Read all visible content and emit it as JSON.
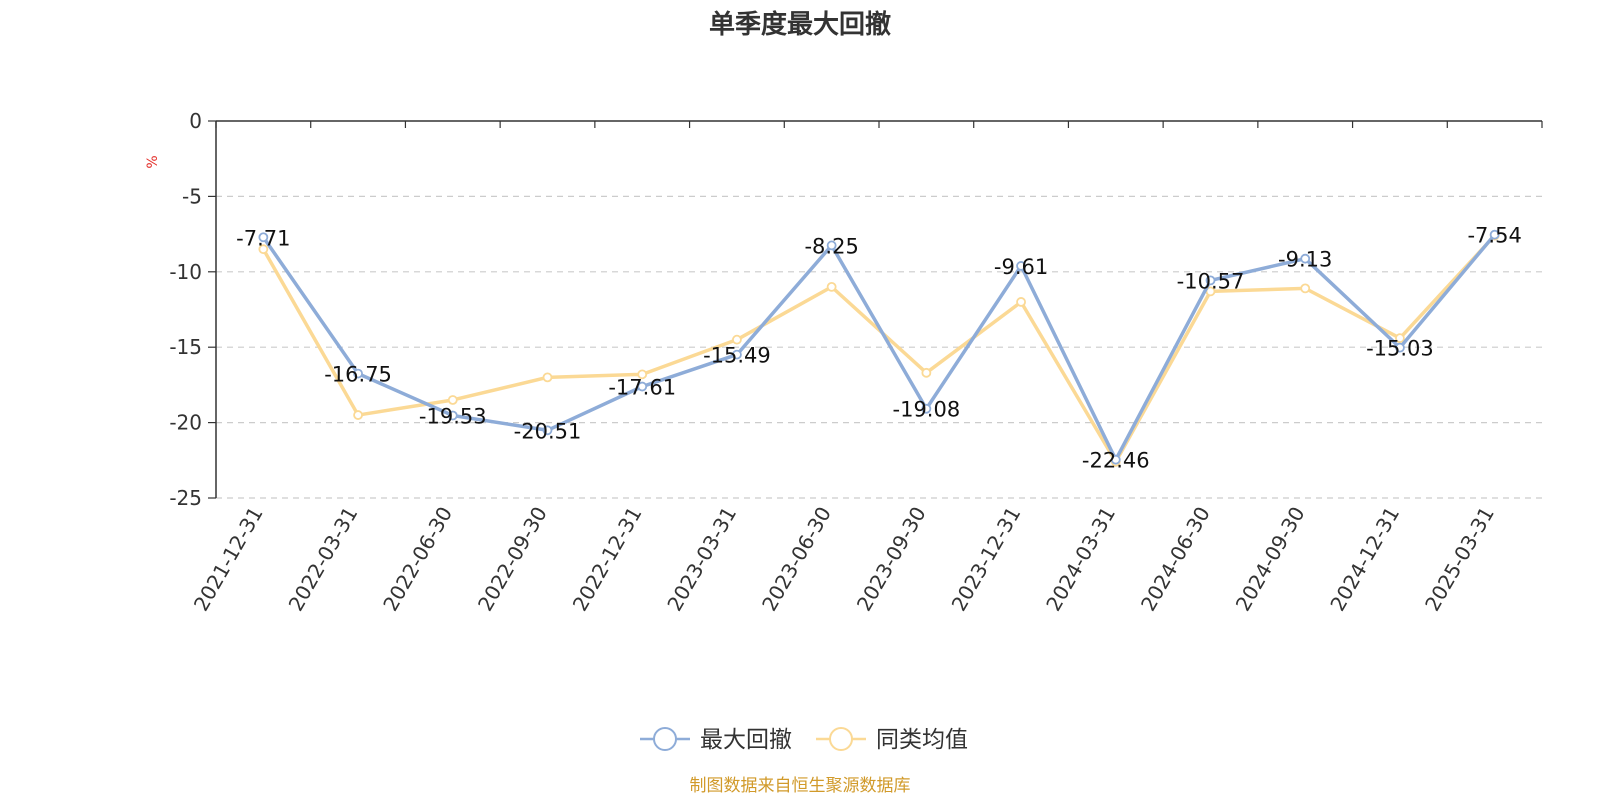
{
  "chart_data": {
    "type": "line",
    "title": "单季度最大回撤",
    "ylabel": "%",
    "ylim": [
      -25,
      0
    ],
    "yticks": [
      0,
      -5,
      -10,
      -15,
      -20,
      -25
    ],
    "grid": true,
    "legend_position": "bottom-center",
    "categories": [
      "2021-12-31",
      "2022-03-31",
      "2022-06-30",
      "2022-09-30",
      "2022-12-31",
      "2023-03-31",
      "2023-06-30",
      "2023-09-30",
      "2023-12-31",
      "2024-03-31",
      "2024-06-30",
      "2024-09-30",
      "2024-12-31",
      "2025-03-31"
    ],
    "series": [
      {
        "name": "最大回撤",
        "color": "#8eacd8",
        "values": [
          -7.71,
          -16.75,
          -19.53,
          -20.51,
          -17.61,
          -15.49,
          -8.25,
          -19.08,
          -9.61,
          -22.46,
          -10.57,
          -9.13,
          -15.03,
          -7.54
        ],
        "labels": [
          "-7.71",
          "-16.75",
          "-19.53",
          "-20.51",
          "-17.61",
          "-15.49",
          "-8.25",
          "-19.08",
          "-9.61",
          "-22.46",
          "-10.57",
          "-9.13",
          "-15.03",
          "-7.54"
        ]
      },
      {
        "name": "同类均值",
        "color": "#fbd995",
        "values": [
          -8.5,
          -19.5,
          -18.5,
          -17.0,
          -16.8,
          -14.5,
          -11.0,
          -16.7,
          -12.0,
          -22.6,
          -11.3,
          -11.1,
          -14.4,
          -7.6
        ]
      }
    ],
    "source_note": "制图数据来自恒生聚源数据库"
  }
}
